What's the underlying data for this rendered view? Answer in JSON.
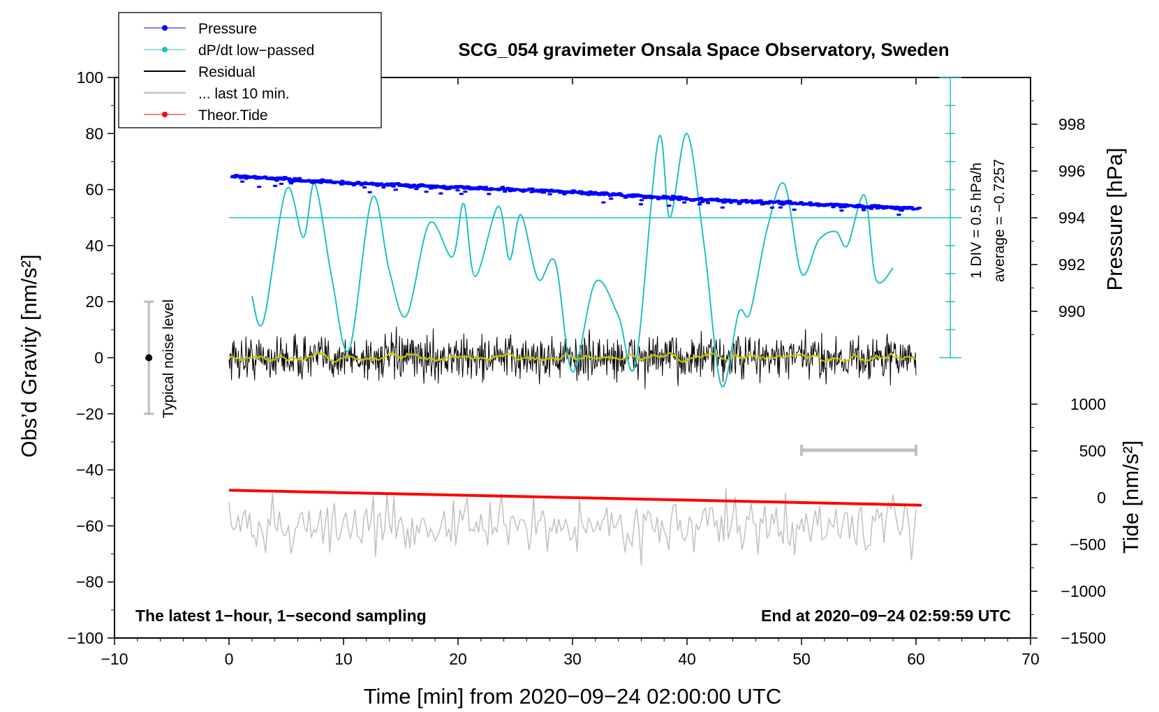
{
  "chart_data": {
    "type": "line",
    "title": "SCG_054 gravimeter Onsala Space Observatory, Sweden",
    "xlabel": "Time [min] from 2020−09−24 02:00:00 UTC",
    "ylabel_left": "Obs’d Gravity [nm/s²]",
    "ylabel_right_pressure": "Pressure [hPa]",
    "ylabel_right_tide": "Tide [nm/s²]",
    "xlim": [
      -10,
      70
    ],
    "ylim_left": [
      -100,
      100
    ],
    "pressure_range": [
      988,
      1000
    ],
    "tide_range": [
      -1500,
      1500
    ],
    "x_ticks": [
      -10,
      0,
      10,
      20,
      30,
      40,
      50,
      60,
      70
    ],
    "x_tick_labels": [
      "−10",
      "0",
      "10",
      "20",
      "30",
      "40",
      "50",
      "60",
      "70"
    ],
    "y_ticks": [
      -100,
      -80,
      -60,
      -40,
      -20,
      0,
      20,
      40,
      60,
      80,
      100
    ],
    "y_tick_labels": [
      "−100",
      "−80",
      "−60",
      "−40",
      "−20",
      "0",
      "20",
      "40",
      "60",
      "80",
      "100"
    ],
    "pressure_ticks": [
      990,
      992,
      994,
      996,
      998
    ],
    "pressure_tick_labels": [
      "990",
      "992",
      "994",
      "996",
      "998"
    ],
    "tide_ticks": [
      -1500,
      -1000,
      -500,
      0,
      500,
      1000
    ],
    "tide_tick_labels": [
      "−1500",
      "−1000",
      "−500",
      "0",
      "500",
      "1000"
    ],
    "legend": [
      {
        "label": "Pressure",
        "color": "#0000ff",
        "marker": true
      },
      {
        "label": "dP/dt low−passed",
        "color": "#20c0c0",
        "marker": true
      },
      {
        "label": "Residual",
        "color": "#000000",
        "marker": false
      },
      {
        "label": "... last 10 min.",
        "color": "#c0c0c0",
        "marker": false
      },
      {
        "label": "Theor.Tide",
        "color": "#ff0000",
        "marker": true
      }
    ],
    "series": [
      {
        "name": "Pressure",
        "axis": "pressure",
        "x": [
          0,
          10,
          20,
          30,
          40,
          50,
          60
        ],
        "values": [
          995.8,
          995.5,
          995.3,
          995.1,
          994.8,
          994.6,
          994.4
        ]
      },
      {
        "name": "dP/dt low-passed",
        "axis": "gravity",
        "x": [
          2,
          3,
          5,
          6.5,
          7.5,
          9,
          10.5,
          12.5,
          14,
          15.5,
          17.5,
          19.5,
          20.5,
          21.5,
          23.5,
          24.5,
          25.5,
          27,
          28.5,
          30,
          32,
          34,
          35.5,
          37.5,
          38.5,
          40,
          41.5,
          43,
          44.5,
          45.5,
          47,
          48.5,
          50,
          51.5,
          53,
          54,
          55.5,
          56.5,
          58
        ],
        "values": [
          22,
          13,
          60,
          43,
          62,
          28,
          3,
          57,
          31,
          15,
          48,
          36,
          55,
          29,
          54,
          35,
          51,
          28,
          34,
          -5,
          27,
          15,
          -2,
          78,
          50,
          80,
          40,
          -10,
          16,
          16,
          46,
          62,
          30,
          42,
          45,
          40,
          58,
          28,
          32
        ]
      },
      {
        "name": "Residual",
        "axis": "gravity",
        "x_range": [
          0,
          60
        ],
        "center": 0,
        "amplitude": 10
      },
      {
        "name": "... last 10 min.",
        "axis": "gravity",
        "x_range": [
          0,
          60
        ],
        "center": -60,
        "amplitude": 12
      },
      {
        "name": "Theor.Tide",
        "axis": "tide",
        "x": [
          0,
          60.5
        ],
        "values": [
          80,
          -80
        ]
      }
    ],
    "pressure_scale_line": {
      "value": 50,
      "annotation_div": "1 DIV = 0.5 hPa/h",
      "annotation_avg": "average = −0.7257"
    },
    "typical_noise": {
      "x": -7,
      "center": 0,
      "half_range": 20,
      "label": "Typical noise level"
    },
    "window_bar": {
      "x_range": [
        50,
        60
      ],
      "y": -33
    },
    "footer_left": "The latest 1−hour, 1−second sampling",
    "footer_right": "End at 2020−09−24 02:59:59 UTC"
  }
}
